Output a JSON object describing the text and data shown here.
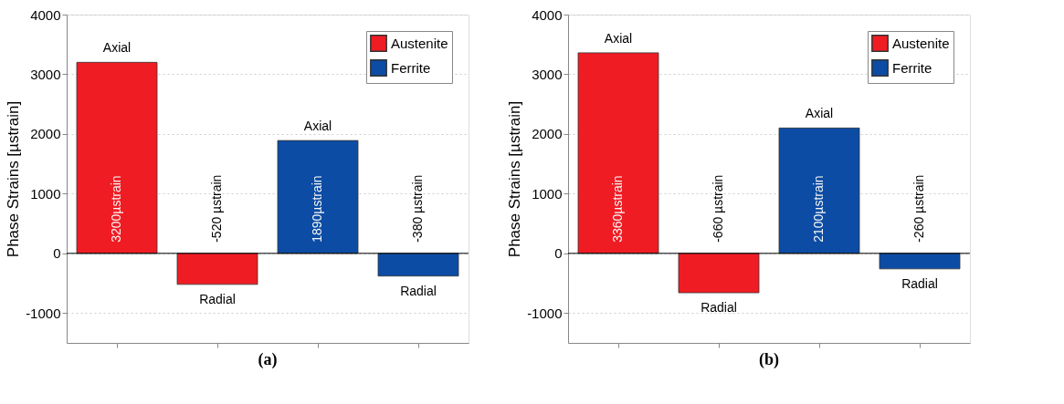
{
  "chart_data": [
    {
      "type": "bar",
      "title": "(a)",
      "ylabel": "Phase Strains [µstrain]",
      "categories": [
        "Axial",
        "Radial",
        "Axial",
        "Radial"
      ],
      "series": [
        {
          "name": "Austenite",
          "color": "#f01c24",
          "values": [
            3200,
            -520,
            null,
            null
          ],
          "value_labels": [
            "3200µstrain",
            "-520 µstrain",
            null,
            null
          ]
        },
        {
          "name": "Ferrite",
          "color": "#0c4ca4",
          "values": [
            null,
            null,
            1890,
            -380
          ],
          "value_labels": [
            null,
            null,
            "1890µstrain",
            "-380 µstrain"
          ]
        }
      ],
      "ylim": [
        -1500,
        4000
      ],
      "yticks": [
        -1000,
        0,
        1000,
        2000,
        3000,
        4000
      ],
      "grid": "y",
      "legend": "top right",
      "tick_labels": "y"
    },
    {
      "type": "bar",
      "title": "(b)",
      "ylabel": "Phase Strains [µstrain]",
      "categories": [
        "Axial",
        "Radial",
        "Axial",
        "Radial"
      ],
      "series": [
        {
          "name": "Austenite",
          "color": "#f01c24",
          "values": [
            3360,
            -660,
            null,
            null
          ],
          "value_labels": [
            "3360µstrain",
            "-660 µstrain",
            null,
            null
          ]
        },
        {
          "name": "Ferrite",
          "color": "#0c4ca4",
          "values": [
            null,
            null,
            2100,
            -260
          ],
          "value_labels": [
            null,
            null,
            "2100µstrain",
            "-260 µstrain"
          ]
        }
      ],
      "ylim": [
        -1500,
        4000
      ],
      "yticks": [
        -1000,
        0,
        1000,
        2000,
        3000,
        4000
      ],
      "grid": "y",
      "legend": "top right",
      "tick_labels": "y"
    }
  ]
}
